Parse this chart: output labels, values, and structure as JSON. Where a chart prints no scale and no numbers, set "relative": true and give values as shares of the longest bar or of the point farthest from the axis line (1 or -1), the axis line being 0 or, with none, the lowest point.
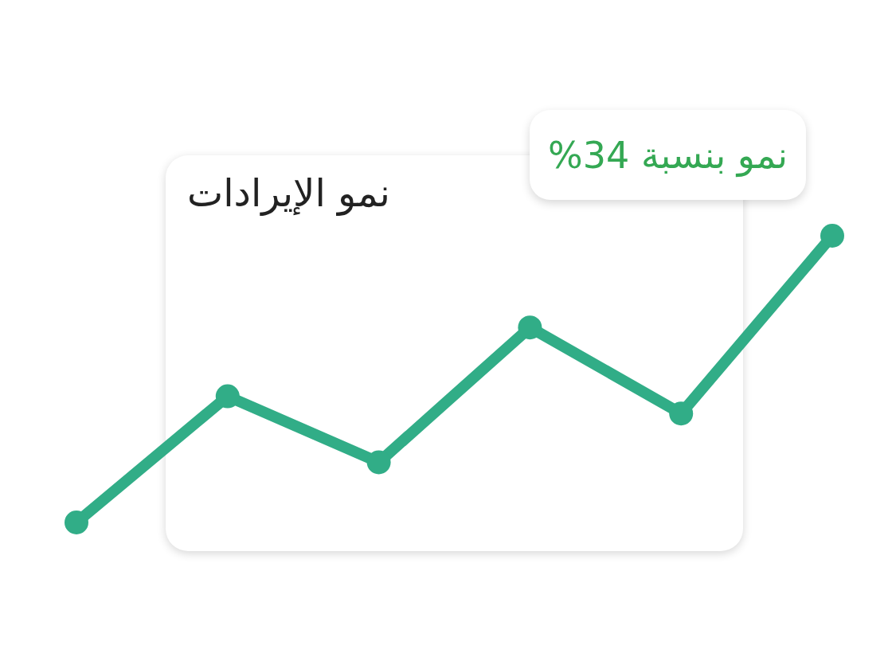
{
  "chart_data": {
    "type": "line",
    "title": "نمو الإيرادات",
    "categories": [
      null,
      null,
      null,
      null,
      null,
      null
    ],
    "series": [
      {
        "color": "#31ad87",
        "values": [
          0,
          0.44,
          0.21,
          0.68,
          0.38,
          1
        ]
      }
    ],
    "relative": true,
    "marker": "circle",
    "line_style": "solid",
    "annotations": [
      "نمو بنسبة 34%"
    ]
  }
}
